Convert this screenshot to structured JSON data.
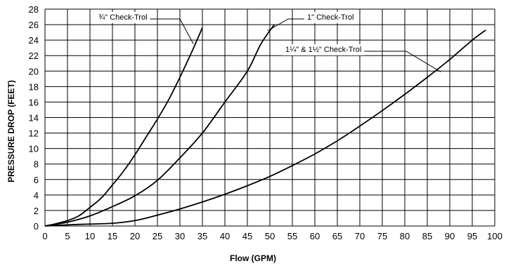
{
  "chart_data": {
    "type": "line",
    "title": "",
    "xlabel": "Flow (GPM)",
    "ylabel": "PRESSURE DROP (FEET)",
    "xlim": [
      0,
      100
    ],
    "ylim": [
      0,
      28
    ],
    "x_ticks": [
      0,
      5,
      10,
      15,
      20,
      25,
      30,
      35,
      40,
      45,
      50,
      55,
      60,
      65,
      70,
      75,
      80,
      85,
      90,
      95,
      100
    ],
    "y_ticks": [
      0,
      2,
      4,
      6,
      8,
      10,
      12,
      14,
      16,
      18,
      20,
      22,
      24,
      26,
      28
    ],
    "grid": true,
    "line_color": "#000000",
    "series": [
      {
        "name": "¾\" Check-Trol",
        "points": [
          [
            0,
            0
          ],
          [
            2.5,
            0.3
          ],
          [
            5,
            0.7
          ],
          [
            7.5,
            1.3
          ],
          [
            10,
            2.4
          ],
          [
            12.5,
            3.6
          ],
          [
            15,
            5.3
          ],
          [
            17.5,
            7.1
          ],
          [
            20,
            9.2
          ],
          [
            22.5,
            11.5
          ],
          [
            25,
            13.8
          ],
          [
            27.5,
            16.3
          ],
          [
            30,
            19.2
          ],
          [
            32.5,
            22.3
          ],
          [
            35,
            25.6
          ]
        ]
      },
      {
        "name": "1\" Check-Trol",
        "points": [
          [
            0,
            0
          ],
          [
            5,
            0.5
          ],
          [
            10,
            1.3
          ],
          [
            15,
            2.5
          ],
          [
            20,
            3.9
          ],
          [
            25,
            5.9
          ],
          [
            30,
            8.8
          ],
          [
            35,
            12.0
          ],
          [
            40,
            16.0
          ],
          [
            45,
            20.0
          ],
          [
            48,
            23.5
          ],
          [
            51,
            26.0
          ]
        ]
      },
      {
        "name": "1¼\" & 1½\" Check-Trol",
        "points": [
          [
            0,
            0
          ],
          [
            5,
            0.15
          ],
          [
            10,
            0.25
          ],
          [
            15,
            0.35
          ],
          [
            20,
            0.7
          ],
          [
            25,
            1.4
          ],
          [
            30,
            2.2
          ],
          [
            35,
            3.1
          ],
          [
            40,
            4.1
          ],
          [
            45,
            5.2
          ],
          [
            50,
            6.4
          ],
          [
            55,
            7.8
          ],
          [
            60,
            9.3
          ],
          [
            65,
            11.0
          ],
          [
            70,
            12.9
          ],
          [
            75,
            14.9
          ],
          [
            80,
            17.0
          ],
          [
            85,
            19.2
          ],
          [
            90,
            21.5
          ],
          [
            95,
            24.0
          ],
          [
            98,
            25.3
          ]
        ]
      }
    ],
    "annotations": [
      {
        "text": "¾\" Check-Trol",
        "target": [
          33,
          23.5
        ]
      },
      {
        "text": "1\" Check-Trol",
        "target": [
          49.5,
          25.2
        ]
      },
      {
        "text": "1¼\" & 1½\" Check-Trol",
        "target": [
          88,
          19.9
        ]
      }
    ]
  }
}
